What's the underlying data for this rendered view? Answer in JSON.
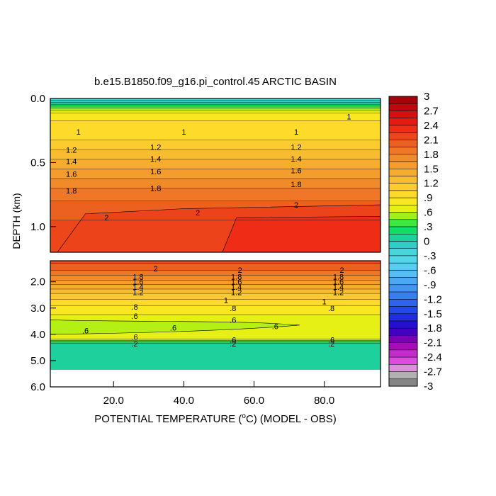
{
  "chart_data": {
    "type": "heatmap",
    "title": "b.e15.B1850.f09_g16.pi_control.45 ARCTIC BASIN",
    "xlabel_main": "POTENTIAL TEMPERATURE (",
    "xlabel_unit": "C) (MODEL - OBS)",
    "xlabel_degree": "o",
    "ylabel": "DEPTH (km)",
    "x_range": [
      2,
      96
    ],
    "x_ticks": [
      {
        "value": 20,
        "label": "20.0"
      },
      {
        "value": 40,
        "label": "40.0"
      },
      {
        "value": 60,
        "label": "60.0"
      },
      {
        "value": 80,
        "label": "80.0"
      }
    ],
    "upper_panel": {
      "depth_range": [
        0.0,
        1.2
      ],
      "y_ticks": [
        {
          "value": 0.0,
          "label": "0.0"
        },
        {
          "value": 0.5,
          "label": "0.5"
        },
        {
          "value": 1.0,
          "label": "1.0"
        }
      ]
    },
    "lower_panel": {
      "depth_range": [
        1.2,
        6.0
      ],
      "y_ticks": [
        {
          "value": 2.0,
          "label": "2.0"
        },
        {
          "value": 3.0,
          "label": "3.0"
        },
        {
          "value": 4.0,
          "label": "4.0"
        },
        {
          "value": 5.0,
          "label": "5.0"
        },
        {
          "value": 6.0,
          "label": "6.0"
        }
      ]
    },
    "colorbar": {
      "range": [
        -3,
        3
      ],
      "labels": [
        "3",
        "2.7",
        "2.4",
        "2.1",
        "1.8",
        "1.5",
        "1.2",
        ".9",
        ".6",
        ".3",
        "0",
        "-.3",
        "-.6",
        "-.9",
        "-1.2",
        "-1.5",
        "-1.8",
        "-2.1",
        "-2.4",
        "-2.7",
        "-3"
      ]
    },
    "upper_profile": [
      {
        "depth": 0.0,
        "value": -0.3
      },
      {
        "depth": 0.02,
        "value": -0.1
      },
      {
        "depth": 0.05,
        "value": 0.2
      },
      {
        "depth": 0.08,
        "value": 0.5
      },
      {
        "depth": 0.12,
        "value": 0.8
      },
      {
        "depth": 0.2,
        "value": 0.95
      },
      {
        "depth": 0.3,
        "value": 1.0
      },
      {
        "depth": 0.4,
        "value": 1.2
      },
      {
        "depth": 0.5,
        "value": 1.4
      },
      {
        "depth": 0.6,
        "value": 1.6
      },
      {
        "depth": 0.7,
        "value": 1.8
      },
      {
        "depth": 0.8,
        "value": 1.95
      },
      {
        "depth": 0.9,
        "value": 2.05
      },
      {
        "depth": 1.0,
        "value": 2.15
      },
      {
        "depth": 1.2,
        "value": 2.2
      }
    ],
    "lower_profile": [
      {
        "depth": 1.2,
        "value": 2.15
      },
      {
        "depth": 1.5,
        "value": 2.0
      },
      {
        "depth": 2.0,
        "value": 1.6
      },
      {
        "depth": 2.5,
        "value": 1.15
      },
      {
        "depth": 3.0,
        "value": 0.85
      },
      {
        "depth": 3.5,
        "value": 0.65
      },
      {
        "depth": 4.0,
        "value": 0.62
      },
      {
        "depth": 4.2,
        "value": 0.6
      },
      {
        "depth": 4.3,
        "value": 0.2
      },
      {
        "depth": 4.4,
        "value": 0.1
      },
      {
        "depth": 5.35,
        "value": 0.1
      }
    ],
    "no_data_below_km": 5.35,
    "upper_contour_labels": [
      {
        "x": 10,
        "depth": 0.26,
        "text": "1"
      },
      {
        "x": 40,
        "depth": 0.26,
        "text": "1"
      },
      {
        "x": 72,
        "depth": 0.26,
        "text": "1"
      },
      {
        "x": 87,
        "depth": 0.14,
        "text": "1"
      },
      {
        "x": 8,
        "depth": 0.4,
        "text": "1.2"
      },
      {
        "x": 32,
        "depth": 0.38,
        "text": "1.2"
      },
      {
        "x": 72,
        "depth": 0.38,
        "text": "1.2"
      },
      {
        "x": 8,
        "depth": 0.49,
        "text": "1.4"
      },
      {
        "x": 32,
        "depth": 0.47,
        "text": "1.4"
      },
      {
        "x": 72,
        "depth": 0.47,
        "text": "1.4"
      },
      {
        "x": 8,
        "depth": 0.59,
        "text": "1.6"
      },
      {
        "x": 32,
        "depth": 0.57,
        "text": "1.6"
      },
      {
        "x": 72,
        "depth": 0.56,
        "text": "1.6"
      },
      {
        "x": 8,
        "depth": 0.72,
        "text": "1.8"
      },
      {
        "x": 32,
        "depth": 0.7,
        "text": "1.8"
      },
      {
        "x": 72,
        "depth": 0.67,
        "text": "1.8"
      },
      {
        "x": 72,
        "depth": 0.83,
        "text": "2"
      },
      {
        "x": 44,
        "depth": 0.89,
        "text": "2"
      },
      {
        "x": 18,
        "depth": 0.93,
        "text": "2"
      }
    ],
    "lower_contour_labels": [
      {
        "x": 32,
        "depth": 1.5,
        "text": "2"
      },
      {
        "x": 56,
        "depth": 1.55,
        "text": "2"
      },
      {
        "x": 85,
        "depth": 1.55,
        "text": "2"
      },
      {
        "x": 27,
        "depth": 1.8,
        "text": "1.8"
      },
      {
        "x": 27,
        "depth": 2.0,
        "text": "1.6"
      },
      {
        "x": 27,
        "depth": 2.2,
        "text": "1.4"
      },
      {
        "x": 27,
        "depth": 2.4,
        "text": "1.2"
      },
      {
        "x": 55,
        "depth": 1.8,
        "text": "1.8"
      },
      {
        "x": 55,
        "depth": 2.0,
        "text": "1.6"
      },
      {
        "x": 55,
        "depth": 2.2,
        "text": "1.4"
      },
      {
        "x": 55,
        "depth": 2.4,
        "text": "1.2"
      },
      {
        "x": 84,
        "depth": 1.8,
        "text": "1.8"
      },
      {
        "x": 84,
        "depth": 2.0,
        "text": "1.6"
      },
      {
        "x": 84,
        "depth": 2.2,
        "text": "1.4"
      },
      {
        "x": 84,
        "depth": 2.4,
        "text": "1.2"
      },
      {
        "x": 52,
        "depth": 2.7,
        "text": "1"
      },
      {
        "x": 80,
        "depth": 2.75,
        "text": "1"
      },
      {
        "x": 26,
        "depth": 2.95,
        "text": ".8"
      },
      {
        "x": 54,
        "depth": 3.0,
        "text": ".8"
      },
      {
        "x": 82,
        "depth": 3.0,
        "text": ".8"
      },
      {
        "x": 26,
        "depth": 3.3,
        "text": ".6"
      },
      {
        "x": 54,
        "depth": 3.45,
        "text": ".6"
      },
      {
        "x": 66,
        "depth": 3.7,
        "text": ".6"
      },
      {
        "x": 37,
        "depth": 3.75,
        "text": ".6"
      },
      {
        "x": 12,
        "depth": 3.85,
        "text": ".6"
      },
      {
        "x": 26,
        "depth": 4.1,
        "text": ".6"
      },
      {
        "x": 54,
        "depth": 4.2,
        "text": ".6"
      },
      {
        "x": 82,
        "depth": 4.2,
        "text": ".6"
      },
      {
        "x": 26,
        "depth": 4.35,
        "text": ".2"
      },
      {
        "x": 54,
        "depth": 4.35,
        "text": ".2"
      },
      {
        "x": 82,
        "depth": 4.35,
        "text": ".2"
      }
    ]
  }
}
